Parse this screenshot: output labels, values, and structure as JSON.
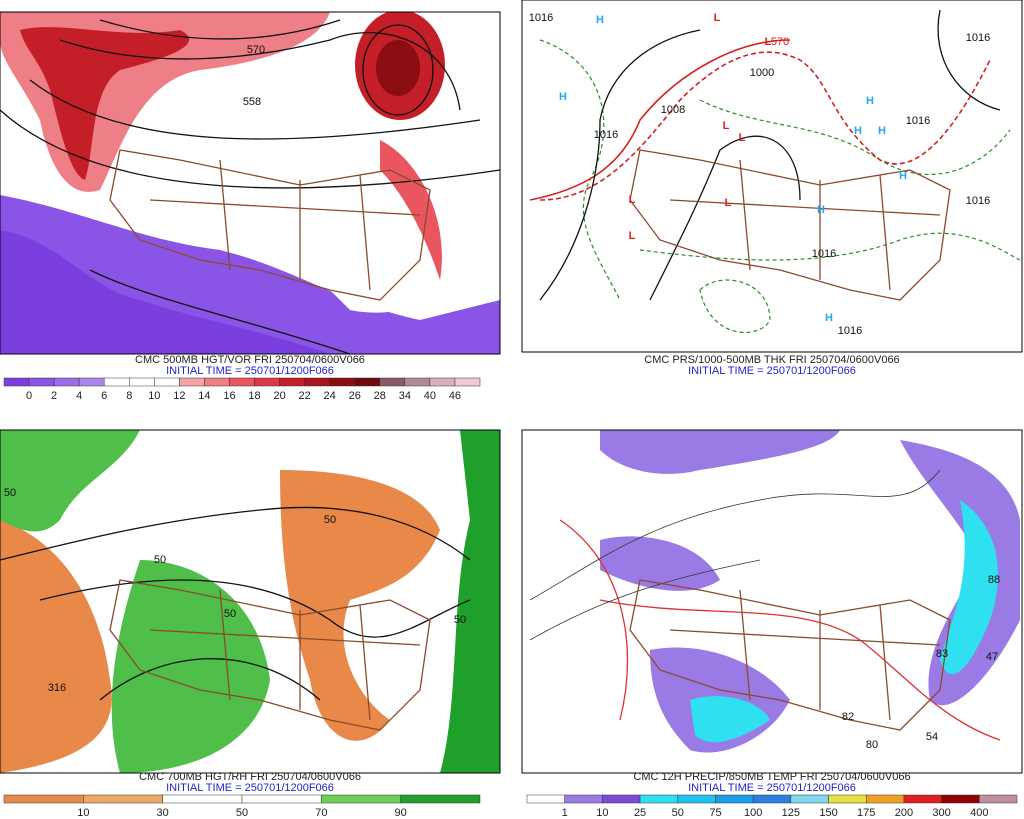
{
  "panels": [
    {
      "caption": "CMC 500MB HGT/VOR FRI 250704/0600V066",
      "init": "INITIAL TIME = 250701/1200F066",
      "map_labels": [
        {
          "text": "570",
          "color": "#111"
        },
        {
          "text": "558",
          "color": "#111"
        }
      ],
      "colorbar": {
        "labels": [
          0,
          2,
          4,
          6,
          8,
          10,
          12,
          14,
          16,
          18,
          20,
          22,
          24,
          26,
          28,
          34,
          40,
          46
        ],
        "colors": [
          "#7b3fe0",
          "#8a55e6",
          "#9a6ce9",
          "#a985ee",
          "#ffffff",
          "#ffffff",
          "#ffffff",
          "#f4a3a8",
          "#ef7f86",
          "#e9565f",
          "#d93a44",
          "#c41e28",
          "#a8141c",
          "#8b0d12",
          "#6e0a0e",
          "#8a5a6a",
          "#b08a98",
          "#d6b0bc",
          "#f0c8d2"
        ]
      }
    },
    {
      "caption": "CMC PRS/1000-500MB THK FRI 250704/0600V066",
      "init": "INITIAL TIME = 250701/1200F066",
      "map_labels": [
        {
          "text": "1016",
          "color": "#111"
        },
        {
          "text": "H",
          "color": "#22aaee"
        },
        {
          "text": "L",
          "color": "#e02020"
        },
        {
          "text": "L",
          "color": "#e02020"
        },
        {
          "text": "570",
          "color": "#d42020"
        },
        {
          "text": "1000",
          "color": "#111"
        },
        {
          "text": "H",
          "color": "#22aaee"
        },
        {
          "text": "1016",
          "color": "#111"
        },
        {
          "text": "1008",
          "color": "#111"
        },
        {
          "text": "L",
          "color": "#e02020"
        },
        {
          "text": "L",
          "color": "#e02020"
        },
        {
          "text": "H",
          "color": "#22aaee"
        },
        {
          "text": "H",
          "color": "#22aaee"
        },
        {
          "text": "H",
          "color": "#22aaee"
        },
        {
          "text": "H",
          "color": "#22aaee"
        },
        {
          "text": "L",
          "color": "#e02020"
        },
        {
          "text": "L",
          "color": "#e02020"
        },
        {
          "text": "1016",
          "color": "#111"
        },
        {
          "text": "H",
          "color": "#22aaee"
        },
        {
          "text": "L",
          "color": "#e02020"
        },
        {
          "text": "1016",
          "color": "#111"
        },
        {
          "text": "H",
          "color": "#22aaee"
        },
        {
          "text": "1016",
          "color": "#111"
        },
        {
          "text": "1016",
          "color": "#111"
        },
        {
          "text": "1016",
          "color": "#111"
        }
      ]
    },
    {
      "caption": "CMC 700MB HGT/RH FRI 250704/0600V066",
      "init": "INITIAL TIME = 250701/1200F066",
      "map_labels": [
        {
          "text": "50",
          "color": "#111"
        },
        {
          "text": "50",
          "color": "#111"
        },
        {
          "text": "50",
          "color": "#111"
        },
        {
          "text": "316",
          "color": "#111"
        },
        {
          "text": "50",
          "color": "#111"
        },
        {
          "text": "50",
          "color": "#111"
        }
      ],
      "colorbar": {
        "labels": [
          10,
          30,
          50,
          70,
          90
        ],
        "colors": [
          "#e8894a",
          "#f0a868",
          "#ffffff",
          "#ffffff",
          "#6ccf5a",
          "#1fa02a"
        ]
      }
    },
    {
      "caption": "CMC 12H PRECIP/850MB TEMP FRI 250704/0600V066",
      "init": "INITIAL TIME = 250701/1200F066",
      "map_labels": [
        {
          "text": "88",
          "color": "#111"
        },
        {
          "text": "83",
          "color": "#111"
        },
        {
          "text": "47",
          "color": "#111"
        },
        {
          "text": "82",
          "color": "#111"
        },
        {
          "text": "80",
          "color": "#111"
        },
        {
          "text": "54",
          "color": "#111"
        }
      ],
      "colorbar": {
        "labels": [
          1,
          10,
          25,
          50,
          75,
          100,
          125,
          150,
          175,
          200,
          300,
          400
        ],
        "colors": [
          "#ffffff",
          "#9a7be6",
          "#7a4ad8",
          "#2ee0f0",
          "#1cc4ee",
          "#1a9de8",
          "#2a7fe0",
          "#7fd8f0",
          "#e8e040",
          "#f0a020",
          "#e02020",
          "#900000",
          "#c090a0"
        ]
      }
    }
  ]
}
